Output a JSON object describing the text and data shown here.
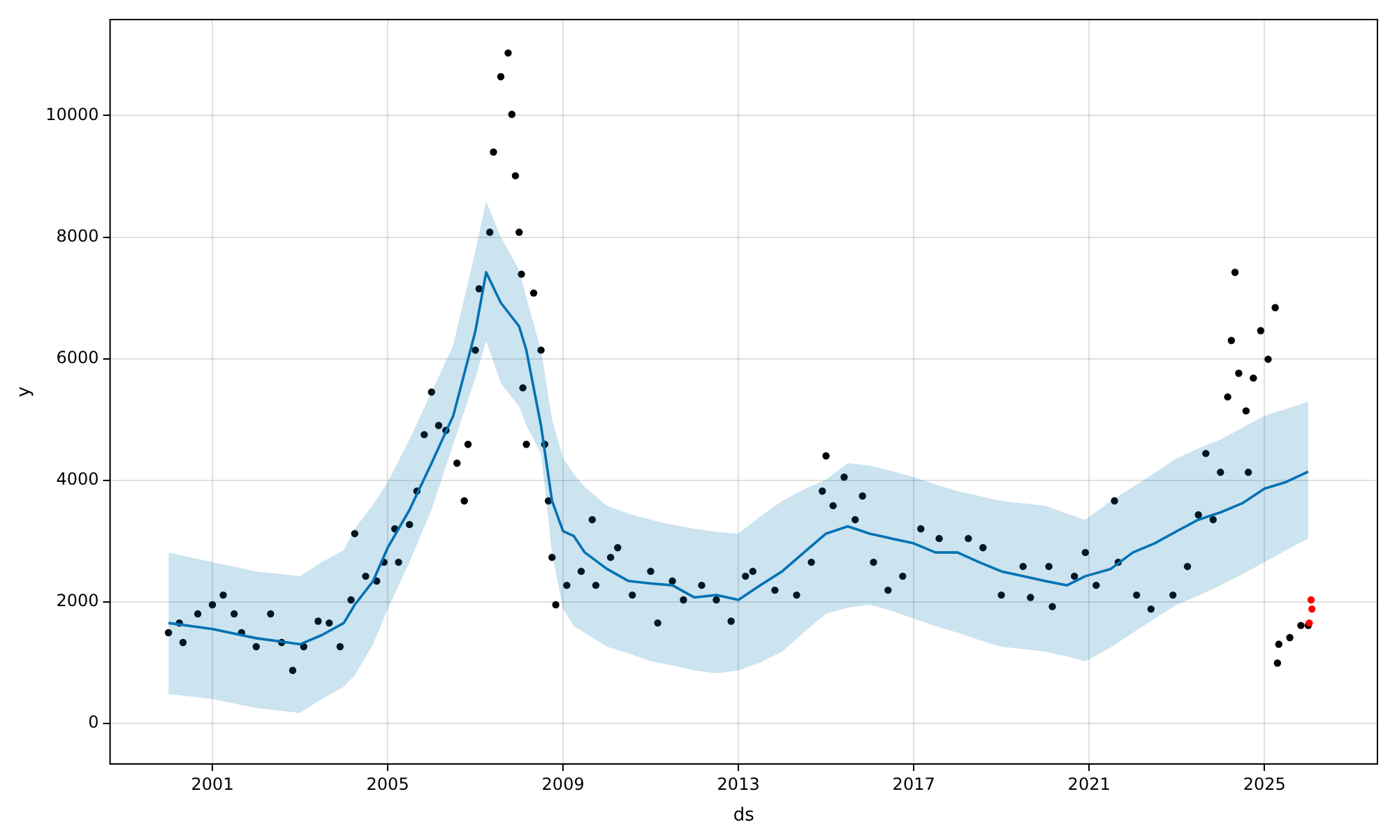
{
  "chart_data": {
    "type": "scatter",
    "xlabel": "ds",
    "ylabel": "y",
    "xlim": [
      "1998-09",
      "2027-08"
    ],
    "xticks": [
      "2001",
      "2005",
      "2009",
      "2013",
      "2017",
      "2021",
      "2025"
    ],
    "ylim": [
      -670,
      11580
    ],
    "yticks": [
      0,
      2000,
      4000,
      6000,
      8000,
      10000
    ],
    "grid": true,
    "legend": false,
    "series": [
      {
        "marker": "circle",
        "color": "#000000",
        "x": [
          "2000-01",
          "2000-04",
          "2000-05",
          "2000-09",
          "2001-01",
          "2001-04",
          "2001-07",
          "2001-09",
          "2002-01",
          "2002-05",
          "2002-08",
          "2002-11",
          "2003-02",
          "2003-06",
          "2003-09",
          "2003-12",
          "2004-03",
          "2004-04",
          "2004-07",
          "2004-10",
          "2004-12",
          "2005-03",
          "2005-04",
          "2005-07",
          "2005-09",
          "2005-11",
          "2006-01",
          "2006-03",
          "2006-05",
          "2006-08",
          "2006-10",
          "2006-11",
          "2007-01",
          "2007-02",
          "2007-05",
          "2007-06",
          "2007-08",
          "2007-10",
          "2007-11",
          "2007-12",
          "2008-01",
          "2008-01-20",
          "2008-02",
          "2008-03",
          "2008-05",
          "2008-07",
          "2008-08",
          "2008-09",
          "2008-10",
          "2008-11",
          "2009-02",
          "2009-06",
          "2009-09",
          "2009-10",
          "2010-02",
          "2010-04",
          "2010-08",
          "2011-01",
          "2011-03",
          "2011-07",
          "2011-10",
          "2012-03",
          "2012-07",
          "2012-11",
          "2013-03",
          "2013-05",
          "2013-11",
          "2014-05",
          "2014-09",
          "2014-12",
          "2015-01",
          "2015-03",
          "2015-06",
          "2015-09",
          "2015-11",
          "2016-02",
          "2016-06",
          "2016-10",
          "2017-03",
          "2017-08",
          "2018-04",
          "2018-08",
          "2019-01",
          "2019-07",
          "2019-09",
          "2020-02",
          "2020-03",
          "2020-09",
          "2020-12",
          "2021-03",
          "2021-08",
          "2021-09",
          "2022-02",
          "2022-06",
          "2022-12",
          "2023-04",
          "2023-07",
          "2023-09",
          "2023-11",
          "2024-01",
          "2024-03",
          "2024-04",
          "2024-05",
          "2024-06",
          "2024-08",
          "2024-08-20",
          "2024-10",
          "2024-12",
          "2025-02",
          "2025-04",
          "2025-04-20",
          "2025-05",
          "2025-08",
          "2025-11",
          "2026-01"
        ],
        "values": [
          1490,
          1650,
          1330,
          1800,
          1950,
          2110,
          1800,
          1490,
          1260,
          1800,
          1330,
          870,
          1260,
          1680,
          1650,
          1260,
          2030,
          3120,
          2420,
          2340,
          2650,
          3200,
          2650,
          3270,
          3820,
          4750,
          5450,
          4900,
          4820,
          4280,
          3660,
          4590,
          6140,
          7150,
          8080,
          9400,
          10640,
          11030,
          10020,
          9010,
          8080,
          7390,
          5520,
          4590,
          7080,
          6140,
          4590,
          3660,
          2730,
          1950,
          2270,
          2500,
          3350,
          2270,
          2730,
          2890,
          2110,
          2500,
          1650,
          2340,
          2030,
          2270,
          2030,
          1680,
          2420,
          2500,
          2190,
          2110,
          2650,
          3820,
          4400,
          3580,
          4050,
          3350,
          3740,
          2650,
          2190,
          2420,
          3200,
          3040,
          3040,
          2890,
          2110,
          2580,
          2070,
          2580,
          1920,
          2420,
          2810,
          2270,
          3660,
          2650,
          2110,
          1880,
          2110,
          2580,
          3430,
          4440,
          3350,
          4130,
          5370,
          6300,
          7420,
          5760,
          5140,
          4130,
          5680,
          6460,
          5990,
          6840,
          990,
          1300,
          1410,
          1610,
          1610
        ]
      },
      {
        "type": "line",
        "color": "#0072b2",
        "x": [
          "2000-01",
          "2001-01",
          "2002-01",
          "2003-01",
          "2003-07",
          "2004-01",
          "2004-04",
          "2004-09",
          "2005-01",
          "2005-07",
          "2006-01",
          "2006-07",
          "2007-01",
          "2007-04",
          "2007-08",
          "2008-01",
          "2008-03",
          "2008-07",
          "2008-10",
          "2009-01",
          "2009-04",
          "2009-07",
          "2010-01",
          "2010-07",
          "2011-01",
          "2011-07",
          "2012-01",
          "2012-07",
          "2013-01",
          "2013-07",
          "2014-01",
          "2014-07",
          "2015-01",
          "2015-07",
          "2016-01",
          "2016-07",
          "2017-01",
          "2017-07",
          "2018-01",
          "2018-07",
          "2019-01",
          "2019-07",
          "2020-01",
          "2020-07",
          "2020-12",
          "2021-07",
          "2022-01",
          "2022-07",
          "2023-01",
          "2023-07",
          "2024-01",
          "2024-07",
          "2025-01",
          "2025-07",
          "2026-01"
        ],
        "values": [
          1650,
          1550,
          1400,
          1300,
          1450,
          1650,
          1950,
          2340,
          2890,
          3510,
          4280,
          5060,
          6450,
          7420,
          6920,
          6530,
          6140,
          4900,
          3660,
          3160,
          3080,
          2810,
          2540,
          2340,
          2300,
          2270,
          2070,
          2110,
          2030,
          2270,
          2500,
          2810,
          3120,
          3240,
          3120,
          3040,
          2960,
          2810,
          2810,
          2650,
          2500,
          2420,
          2340,
          2270,
          2420,
          2540,
          2810,
          2960,
          3160,
          3350,
          3470,
          3620,
          3860,
          3970,
          4140
        ],
        "lower": [
          480,
          400,
          250,
          170,
          400,
          600,
          790,
          1300,
          1880,
          2650,
          3510,
          4590,
          5680,
          6300,
          5600,
          5210,
          4900,
          4440,
          2800,
          1880,
          1600,
          1490,
          1260,
          1150,
          1020,
          950,
          870,
          820,
          870,
          1000,
          1180,
          1500,
          1800,
          1900,
          1950,
          1850,
          1720,
          1600,
          1490,
          1370,
          1260,
          1220,
          1180,
          1100,
          1020,
          1250,
          1490,
          1720,
          1950,
          2100,
          2270,
          2450,
          2650,
          2850,
          3040
        ],
        "upper": [
          2810,
          2650,
          2500,
          2420,
          2650,
          2850,
          3200,
          3600,
          3970,
          4670,
          5450,
          6220,
          7770,
          8590,
          8000,
          7460,
          7000,
          6140,
          5000,
          4360,
          4100,
          3890,
          3580,
          3450,
          3350,
          3270,
          3200,
          3150,
          3120,
          3400,
          3660,
          3850,
          4010,
          4280,
          4240,
          4150,
          4050,
          3930,
          3820,
          3740,
          3660,
          3620,
          3580,
          3450,
          3350,
          3660,
          3890,
          4120,
          4360,
          4520,
          4670,
          4860,
          5060,
          5170,
          5290
        ]
      },
      {
        "marker": "circle",
        "color": "#ff0000",
        "x": [
          "2026-01-10",
          "2026-01-25",
          "2026-02"
        ],
        "values": [
          1650,
          2030,
          1880
        ]
      }
    ]
  }
}
